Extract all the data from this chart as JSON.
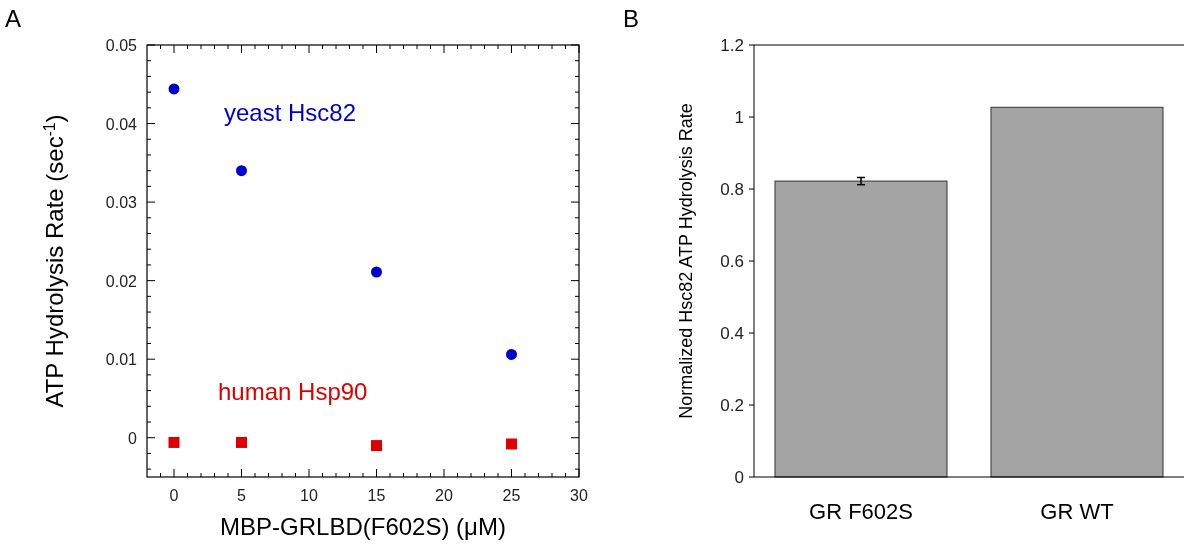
{
  "chart_data": [
    {
      "type": "scatter",
      "title": "A",
      "xlabel": "MBP-GRLBD(F602S) (μM)",
      "ylabel": "ATP Hydrolysis Rate (sec$^{-1}$)",
      "x": [
        0,
        5,
        15,
        25
      ],
      "series": [
        {
          "name": "yeast Hsc82",
          "color": "#0000cc",
          "values": [
            0.0444,
            0.034,
            0.0211,
            0.0106
          ],
          "marker": "circle"
        },
        {
          "name": "human Hsp90",
          "color": "#dd0000",
          "values": [
            -0.0006,
            -0.0006,
            -0.001,
            -0.0008
          ],
          "marker": "square"
        }
      ],
      "xlim": [
        -2,
        30
      ],
      "ylim": [
        -0.005,
        0.05
      ],
      "xticks": [
        0,
        5,
        10,
        15,
        20,
        25,
        30,
        {
          "value": -1,
          "label": null
        },
        {
          "value": 1,
          "label": null
        },
        {
          "value": 2,
          "label": null
        },
        {
          "value": 3,
          "label": null
        },
        {
          "value": 4,
          "label": null
        },
        {
          "value": 6,
          "label": null
        },
        {
          "value": 7,
          "label": null
        },
        {
          "value": 8,
          "label": null
        },
        {
          "value": 9,
          "label": null
        },
        {
          "value": 11,
          "label": null
        },
        {
          "value": 12,
          "label": null
        },
        {
          "value": 13,
          "label": null
        },
        {
          "value": 14,
          "label": null
        },
        {
          "value": 16,
          "label": null
        },
        {
          "value": 17,
          "label": null
        },
        {
          "value": 18,
          "label": null
        },
        {
          "value": 19,
          "label": null
        },
        {
          "value": 21,
          "label": null
        },
        {
          "value": 22,
          "label": null
        },
        {
          "value": 23,
          "label": null
        },
        {
          "value": 24,
          "label": null
        },
        {
          "value": 26,
          "label": null
        },
        {
          "value": 27,
          "label": null
        },
        {
          "value": 28,
          "label": null
        },
        {
          "value": 29,
          "label": null
        }
      ],
      "yticks": [
        0,
        0.01,
        0.02,
        0.03,
        0.04,
        0.05,
        {
          "value": -0.004,
          "label": null
        },
        {
          "value": -0.002,
          "label": null
        },
        {
          "value": 0.002,
          "label": null
        },
        {
          "value": 0.004,
          "label": null
        },
        {
          "value": 0.006,
          "label": null
        },
        {
          "value": 0.008,
          "label": null
        },
        {
          "value": 0.012,
          "label": null
        },
        {
          "value": 0.014,
          "label": null
        },
        {
          "value": 0.016,
          "label": null
        },
        {
          "value": 0.018,
          "label": null
        },
        {
          "value": 0.022,
          "label": null
        },
        {
          "value": 0.024,
          "label": null
        },
        {
          "value": 0.026,
          "label": null
        },
        {
          "value": 0.028,
          "label": null
        },
        {
          "value": 0.032,
          "label": null
        },
        {
          "value": 0.034,
          "label": null
        },
        {
          "value": 0.036,
          "label": null
        },
        {
          "value": 0.038,
          "label": null
        },
        {
          "value": 0.042,
          "label": null
        },
        {
          "value": 0.044,
          "label": null
        },
        {
          "value": 0.046,
          "label": null
        },
        {
          "value": 0.048,
          "label": null
        }
      ],
      "grid": false
    },
    {
      "type": "bar",
      "title": "B",
      "ylabel": "Normalized Hsc82 ATP Hydrolysis Rate",
      "categories": [
        "GR F602S",
        "GR WT"
      ],
      "values": [
        0.822,
        1.027
      ],
      "errors": [
        0.01,
        null
      ],
      "color": "#a4a4a4",
      "ylim": [
        0,
        1.2
      ],
      "yticks": [
        0,
        0.2,
        0.4,
        0.6,
        0.8,
        1,
        1.2
      ],
      "grid": false
    }
  ]
}
